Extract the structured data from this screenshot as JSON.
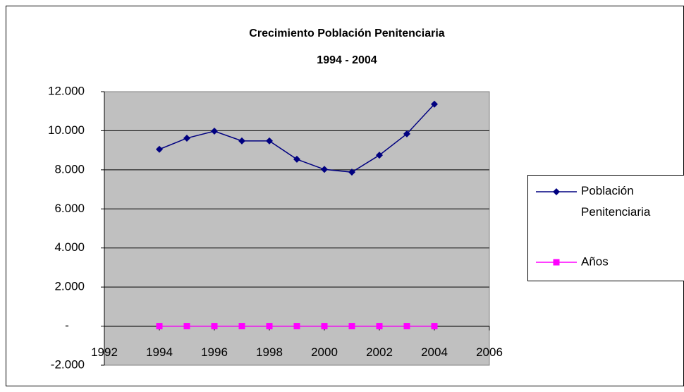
{
  "chart_data": {
    "type": "line",
    "title": "Crecimiento Población Penitenciaria",
    "subtitle": "1994 - 2004",
    "x": [
      1994,
      1995,
      1996,
      1997,
      1998,
      1999,
      2000,
      2001,
      2002,
      2003,
      2004
    ],
    "series": [
      {
        "name": "Población Penitenciaria",
        "color": "#000080",
        "marker": "diamond",
        "values": [
          9050,
          9620,
          9980,
          9480,
          9480,
          8540,
          8020,
          7880,
          8750,
          9840,
          11360
        ]
      },
      {
        "name": "Años",
        "color": "#ff00ff",
        "marker": "square",
        "values": [
          0,
          0,
          0,
          0,
          0,
          0,
          0,
          0,
          0,
          0,
          0
        ]
      }
    ],
    "xlim": [
      1992,
      2006
    ],
    "xticks": [
      1992,
      1994,
      1996,
      1998,
      2000,
      2002,
      2004,
      2006
    ],
    "ylim": [
      -2000,
      12000
    ],
    "yticks": [
      {
        "value": -2000,
        "label": "-2.000"
      },
      {
        "value": 0,
        "label": "-"
      },
      {
        "value": 2000,
        "label": "2.000"
      },
      {
        "value": 4000,
        "label": "4.000"
      },
      {
        "value": 6000,
        "label": "6.000"
      },
      {
        "value": 8000,
        "label": "8.000"
      },
      {
        "value": 10000,
        "label": "10.000"
      },
      {
        "value": 12000,
        "label": "12.000"
      }
    ],
    "grid": true,
    "legend": "right"
  }
}
